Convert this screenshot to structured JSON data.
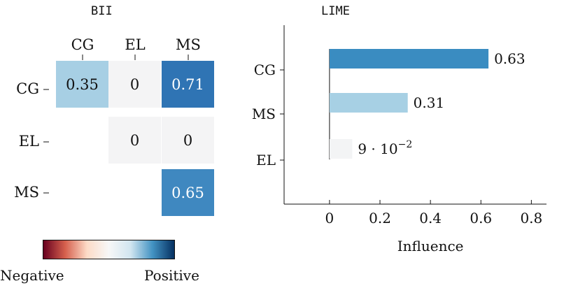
{
  "left_title": "BII",
  "right_title": "LIME",
  "colorbar": {
    "negative_label": "Negative",
    "positive_label": "Positive"
  },
  "chart_data": [
    {
      "type": "heatmap",
      "title": "BII",
      "columns": [
        "CG",
        "EL",
        "MS"
      ],
      "rows": [
        "CG",
        "EL",
        "MS"
      ],
      "cells": [
        {
          "row": "CG",
          "col": "CG",
          "value": 0.35,
          "label": "0.35",
          "color": "#a7cfe4"
        },
        {
          "row": "CG",
          "col": "EL",
          "value": 0,
          "label": "0",
          "color": "#f4f4f5"
        },
        {
          "row": "CG",
          "col": "MS",
          "value": 0.71,
          "label": "0.71",
          "color": "#2f74b4"
        },
        {
          "row": "EL",
          "col": "EL",
          "value": 0,
          "label": "0",
          "color": "#f4f4f5"
        },
        {
          "row": "EL",
          "col": "MS",
          "value": 0,
          "label": "0",
          "color": "#f4f4f5"
        },
        {
          "row": "MS",
          "col": "MS",
          "value": 0.65,
          "label": "0.65",
          "color": "#3f88c0"
        }
      ],
      "colorscale": [
        "#67001f",
        "#d6604d",
        "#fddbc7",
        "#f7f7f7",
        "#d1e5f0",
        "#4393c3",
        "#053061"
      ]
    },
    {
      "type": "bar",
      "orientation": "horizontal",
      "title": "LIME",
      "categories": [
        "CG",
        "MS",
        "EL"
      ],
      "values": [
        0.63,
        0.31,
        0.09
      ],
      "value_labels": [
        "0.63",
        "0.31",
        "9 · 10"
      ],
      "value_label_exponents": [
        "",
        "",
        "−2"
      ],
      "colors": [
        "#3a8cc1",
        "#a7d0e4",
        "#f3f4f5"
      ],
      "xlabel": "Influence",
      "xlim": [
        -0.18,
        0.86
      ],
      "xticks": [
        0,
        0.2,
        0.4,
        0.6,
        0.8
      ],
      "xtick_labels": [
        "0",
        "0.2",
        "0.4",
        "0.6",
        "0.8"
      ]
    }
  ]
}
